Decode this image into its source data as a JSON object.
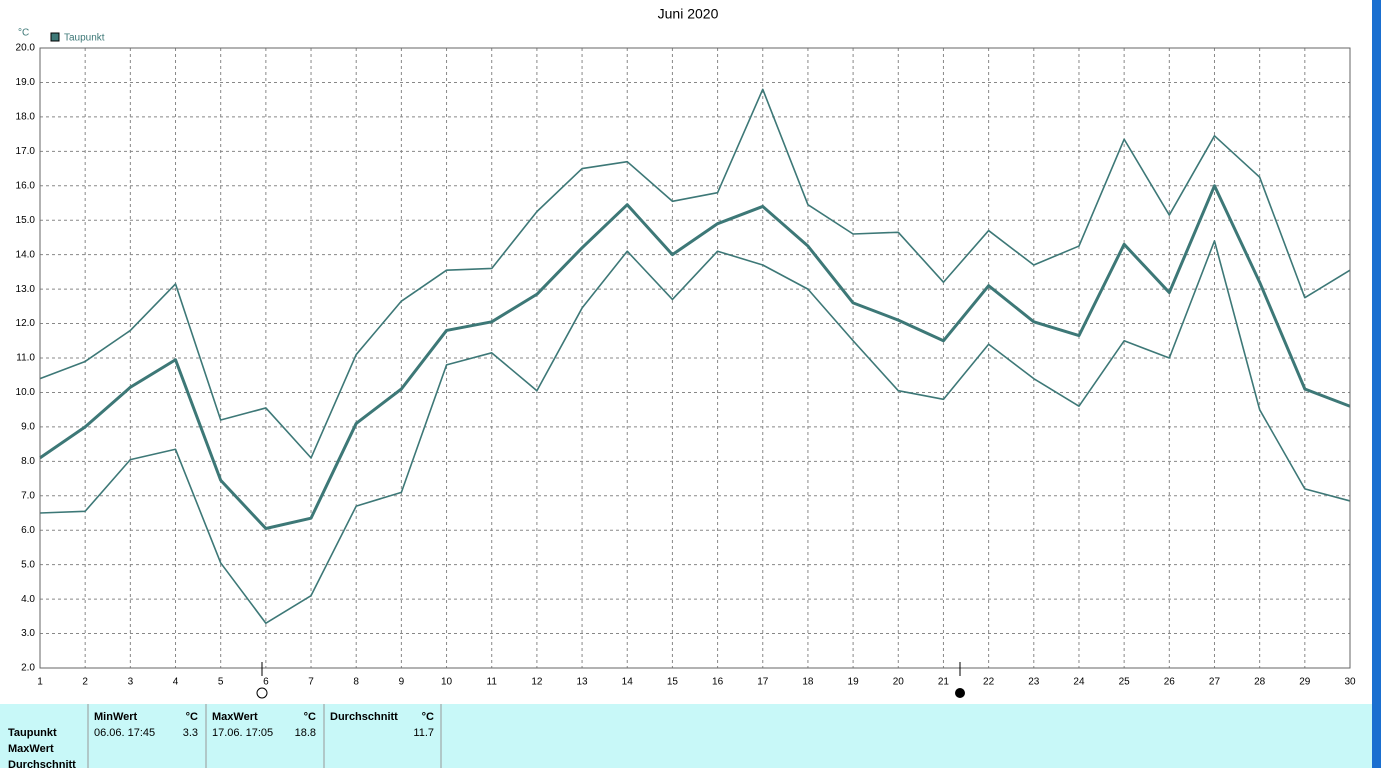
{
  "chart_data": {
    "type": "line",
    "title": "Juni 2020",
    "y_label": "°C",
    "legend": "Taupunkt",
    "x": [
      1,
      2,
      3,
      4,
      5,
      6,
      7,
      8,
      9,
      10,
      11,
      12,
      13,
      14,
      15,
      16,
      17,
      18,
      19,
      20,
      21,
      22,
      23,
      24,
      25,
      26,
      27,
      28,
      29,
      30
    ],
    "xlim": [
      1,
      30
    ],
    "xticks": [
      1,
      2,
      3,
      4,
      5,
      6,
      7,
      8,
      9,
      10,
      11,
      12,
      13,
      14,
      15,
      16,
      17,
      18,
      19,
      20,
      21,
      22,
      23,
      24,
      25,
      26,
      27,
      28,
      29,
      30
    ],
    "ylim": [
      2,
      20
    ],
    "yticks": [
      {
        "value": 2,
        "label": "2.0"
      },
      {
        "value": 3,
        "label": "3.0"
      },
      {
        "value": 4,
        "label": "4.0"
      },
      {
        "value": 5,
        "label": "5.0"
      },
      {
        "value": 6,
        "label": "6.0"
      },
      {
        "value": 7,
        "label": "7.0"
      },
      {
        "value": 8,
        "label": "8.0"
      },
      {
        "value": 9,
        "label": "9.0"
      },
      {
        "value": 10,
        "label": "10.0"
      },
      {
        "value": 11,
        "label": "11.0"
      },
      {
        "value": 12,
        "label": "12.0"
      },
      {
        "value": 13,
        "label": "13.0"
      },
      {
        "value": 14,
        "label": "14.0"
      },
      {
        "value": 15,
        "label": "15.0"
      },
      {
        "value": 16,
        "label": "16.0"
      },
      {
        "value": 17,
        "label": "17.0"
      },
      {
        "value": 18,
        "label": "18.0"
      },
      {
        "value": 19,
        "label": "19.0"
      },
      {
        "value": 20,
        "label": "20.0"
      }
    ],
    "grid": true,
    "series": [
      {
        "color": "#3d7877",
        "values": [
          10.4,
          10.9,
          11.8,
          13.15,
          9.2,
          9.55,
          8.1,
          11.1,
          12.65,
          13.55,
          13.6,
          15.25,
          16.5,
          16.7,
          15.55,
          15.8,
          18.8,
          15.45,
          14.6,
          14.65,
          13.2,
          14.7,
          13.7,
          14.25,
          17.35,
          15.15,
          17.45,
          16.25,
          12.75,
          13.55
        ]
      },
      {
        "name": "Taupunkt",
        "color": "#3d7877",
        "values": [
          8.1,
          9.0,
          10.15,
          10.95,
          7.45,
          6.05,
          6.35,
          9.1,
          10.1,
          11.8,
          12.05,
          12.85,
          14.2,
          15.45,
          14.0,
          14.9,
          15.4,
          14.25,
          12.6,
          12.1,
          11.5,
          13.1,
          12.05,
          11.65,
          14.3,
          12.9,
          16.0,
          13.2,
          10.1,
          9.6
        ]
      },
      {
        "color": "#3d7877",
        "values": [
          6.5,
          6.55,
          8.05,
          8.35,
          5.05,
          3.3,
          4.1,
          6.7,
          7.1,
          10.8,
          11.15,
          10.05,
          12.45,
          14.1,
          12.7,
          14.1,
          13.7,
          13.0,
          11.5,
          10.05,
          9.8,
          11.4,
          10.4,
          9.6,
          11.5,
          11.0,
          14.4,
          9.5,
          7.2,
          6.85
        ]
      }
    ]
  },
  "table": {
    "row_labels": [
      "Taupunkt",
      "MaxWert",
      "Durchschnitt"
    ],
    "columns": [
      {
        "header": "MinWert",
        "unit": "°C",
        "time": "06.06.  17:45",
        "value": "3.3"
      },
      {
        "header": "MaxWert",
        "unit": "°C",
        "time": "17.06.  17:05",
        "value": "18.8"
      },
      {
        "header": "Durchschnitt",
        "unit": "°C",
        "value": "11.7"
      }
    ]
  }
}
